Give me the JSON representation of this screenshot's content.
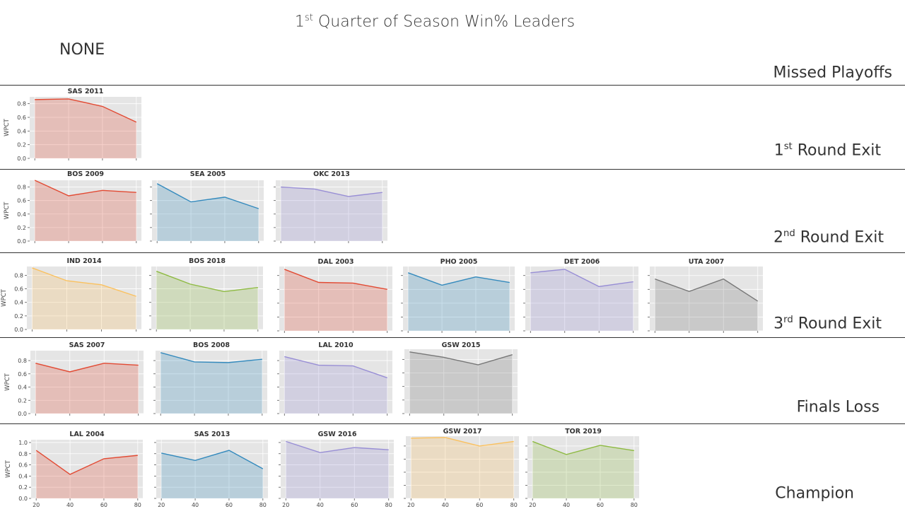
{
  "title": {
    "prefix": "1",
    "sup": "st",
    "rest": " Quarter of Season Win% Leaders"
  },
  "none_label": "NONE",
  "row_labels": [
    {
      "prefix": "",
      "sup": "",
      "rest": "Missed Playoffs"
    },
    {
      "prefix": "1",
      "sup": "st",
      "rest": " Round Exit"
    },
    {
      "prefix": "2",
      "sup": "nd",
      "rest": " Round Exit"
    },
    {
      "prefix": "3",
      "sup": "rd",
      "rest": " Round Exit"
    },
    {
      "prefix": "",
      "sup": "",
      "rest": "Finals Loss"
    },
    {
      "prefix": "",
      "sup": "",
      "rest": "Champion"
    }
  ],
  "colors": {
    "red": "#e24a33",
    "blue": "#348abd",
    "purple": "#988ed5",
    "gray": "#777777",
    "yellow": "#fbc15e",
    "green": "#8eba42",
    "panel_bg": "#e5e5e5",
    "grid": "#ffffff"
  },
  "chart_data": [
    {
      "type": "area",
      "group": "1st Round Exit",
      "title": "SAS 2011",
      "color": "red",
      "ylabel": "WPCT",
      "x": [
        20,
        40,
        60,
        80
      ],
      "y": [
        0.86,
        0.87,
        0.76,
        0.53
      ],
      "ylim": [
        0,
        0.9
      ],
      "yticks": [
        "0.0",
        "0.2",
        "0.4",
        "0.6",
        "0.8"
      ],
      "xticks": []
    },
    {
      "type": "area",
      "group": "2nd Round Exit",
      "title": "BOS 2009",
      "color": "red",
      "ylabel": "WPCT",
      "x": [
        20,
        40,
        60,
        80
      ],
      "y": [
        0.9,
        0.67,
        0.75,
        0.72
      ],
      "ylim": [
        0,
        0.9
      ],
      "yticks": [
        "0.0",
        "0.2",
        "0.4",
        "0.6",
        "0.8"
      ],
      "xticks": []
    },
    {
      "type": "area",
      "group": "2nd Round Exit",
      "title": "SEA 2005",
      "color": "blue",
      "ylabel": "",
      "x": [
        20,
        40,
        60,
        80
      ],
      "y": [
        0.85,
        0.58,
        0.65,
        0.48
      ],
      "ylim": [
        0,
        0.9
      ],
      "yticks": [],
      "xticks": []
    },
    {
      "type": "area",
      "group": "2nd Round Exit",
      "title": "OKC 2013",
      "color": "purple",
      "ylabel": "",
      "x": [
        20,
        40,
        60,
        80
      ],
      "y": [
        0.8,
        0.77,
        0.66,
        0.72
      ],
      "ylim": [
        0,
        0.9
      ],
      "yticks": [],
      "xticks": []
    },
    {
      "type": "area",
      "group": "3rd Round Exit",
      "title": "IND 2014",
      "color": "yellow",
      "ylabel": "WPCT",
      "x": [
        20,
        40,
        60,
        80
      ],
      "y": [
        0.91,
        0.72,
        0.66,
        0.49
      ],
      "ylim": [
        0,
        0.93
      ],
      "yticks": [
        "0.0",
        "0.2",
        "0.4",
        "0.6",
        "0.8"
      ],
      "xticks": []
    },
    {
      "type": "area",
      "group": "3rd Round Exit",
      "title": "BOS 2018",
      "color": "green",
      "ylabel": "",
      "x": [
        20,
        40,
        60,
        80
      ],
      "y": [
        0.86,
        0.67,
        0.56,
        0.62
      ],
      "ylim": [
        0,
        0.93
      ],
      "yticks": [],
      "xticks": []
    },
    {
      "type": "area",
      "group": "3rd Round Exit",
      "title": "DAL 2003",
      "color": "red",
      "ylabel": "",
      "x": [
        20,
        40,
        60,
        80
      ],
      "y": [
        0.89,
        0.7,
        0.69,
        0.6
      ],
      "ylim": [
        0,
        0.93
      ],
      "yticks": [],
      "xticks": []
    },
    {
      "type": "area",
      "group": "3rd Round Exit",
      "title": "PHO 2005",
      "color": "blue",
      "ylabel": "",
      "x": [
        20,
        40,
        60,
        80
      ],
      "y": [
        0.84,
        0.66,
        0.78,
        0.7
      ],
      "ylim": [
        0,
        0.93
      ],
      "yticks": [],
      "xticks": []
    },
    {
      "type": "area",
      "group": "3rd Round Exit",
      "title": "DET 2006",
      "color": "purple",
      "ylabel": "",
      "x": [
        20,
        40,
        60,
        80
      ],
      "y": [
        0.84,
        0.89,
        0.64,
        0.71
      ],
      "ylim": [
        0,
        0.93
      ],
      "yticks": [],
      "xticks": []
    },
    {
      "type": "area",
      "group": "3rd Round Exit",
      "title": "UTA 2007",
      "color": "gray",
      "ylabel": "",
      "x": [
        20,
        40,
        60,
        80
      ],
      "y": [
        0.75,
        0.57,
        0.75,
        0.43
      ],
      "ylim": [
        0,
        0.93
      ],
      "yticks": [],
      "xticks": []
    },
    {
      "type": "area",
      "group": "Finals Loss",
      "title": "SAS 2007",
      "color": "red",
      "ylabel": "WPCT",
      "x": [
        20,
        40,
        60,
        80
      ],
      "y": [
        0.76,
        0.63,
        0.76,
        0.73
      ],
      "ylim": [
        0,
        0.95
      ],
      "yticks": [
        "0.0",
        "0.2",
        "0.4",
        "0.6",
        "0.8"
      ],
      "xticks": []
    },
    {
      "type": "area",
      "group": "Finals Loss",
      "title": "BOS 2008",
      "color": "blue",
      "ylabel": "",
      "x": [
        20,
        40,
        60,
        80
      ],
      "y": [
        0.92,
        0.78,
        0.77,
        0.82
      ],
      "ylim": [
        0,
        0.95
      ],
      "yticks": [],
      "xticks": []
    },
    {
      "type": "area",
      "group": "Finals Loss",
      "title": "LAL 2010",
      "color": "purple",
      "ylabel": "",
      "x": [
        20,
        40,
        60,
        80
      ],
      "y": [
        0.86,
        0.73,
        0.72,
        0.54
      ],
      "ylim": [
        0,
        0.95
      ],
      "yticks": [],
      "xticks": []
    },
    {
      "type": "area",
      "group": "Finals Loss",
      "title": "GSW 2015",
      "color": "gray",
      "ylabel": "",
      "x": [
        20,
        40,
        60,
        80
      ],
      "y": [
        0.91,
        0.83,
        0.72,
        0.87
      ],
      "ylim": [
        0,
        0.95
      ],
      "yticks": [],
      "xticks": []
    },
    {
      "type": "area",
      "group": "Champion",
      "title": "LAL 2004",
      "color": "red",
      "ylabel": "WPCT",
      "x": [
        20,
        40,
        60,
        80
      ],
      "y": [
        0.86,
        0.43,
        0.71,
        0.77
      ],
      "ylim": [
        0,
        1.05
      ],
      "yticks": [
        "0.0",
        "0.2",
        "0.4",
        "0.6",
        "0.8",
        "1.0"
      ],
      "xticks": [
        "20",
        "40",
        "60",
        "80"
      ]
    },
    {
      "type": "area",
      "group": "Champion",
      "title": "SAS 2013",
      "color": "blue",
      "ylabel": "",
      "x": [
        20,
        40,
        60,
        80
      ],
      "y": [
        0.81,
        0.68,
        0.86,
        0.53
      ],
      "ylim": [
        0,
        1.05
      ],
      "yticks": [],
      "xticks": [
        "20",
        "40",
        "60",
        "80"
      ]
    },
    {
      "type": "area",
      "group": "Champion",
      "title": "GSW 2016",
      "color": "purple",
      "ylabel": "",
      "x": [
        20,
        40,
        60,
        80
      ],
      "y": [
        1.02,
        0.82,
        0.91,
        0.87
      ],
      "ylim": [
        0,
        1.05
      ],
      "yticks": [],
      "xticks": [
        "20",
        "40",
        "60",
        "80"
      ]
    },
    {
      "type": "area",
      "group": "Champion",
      "title": "GSW 2017",
      "color": "yellow",
      "ylabel": "",
      "x": [
        20,
        40,
        60,
        80
      ],
      "y": [
        0.92,
        0.93,
        0.8,
        0.87
      ],
      "ylim": [
        0,
        0.95
      ],
      "yticks": [],
      "xticks": [
        "20",
        "40",
        "60",
        "80"
      ]
    },
    {
      "type": "area",
      "group": "Champion",
      "title": "TOR 2019",
      "color": "green",
      "ylabel": "",
      "x": [
        20,
        40,
        60,
        80
      ],
      "y": [
        0.87,
        0.67,
        0.81,
        0.73
      ],
      "ylim": [
        0,
        0.95
      ],
      "yticks": [],
      "xticks": [
        "20",
        "40",
        "60",
        "80"
      ]
    }
  ]
}
